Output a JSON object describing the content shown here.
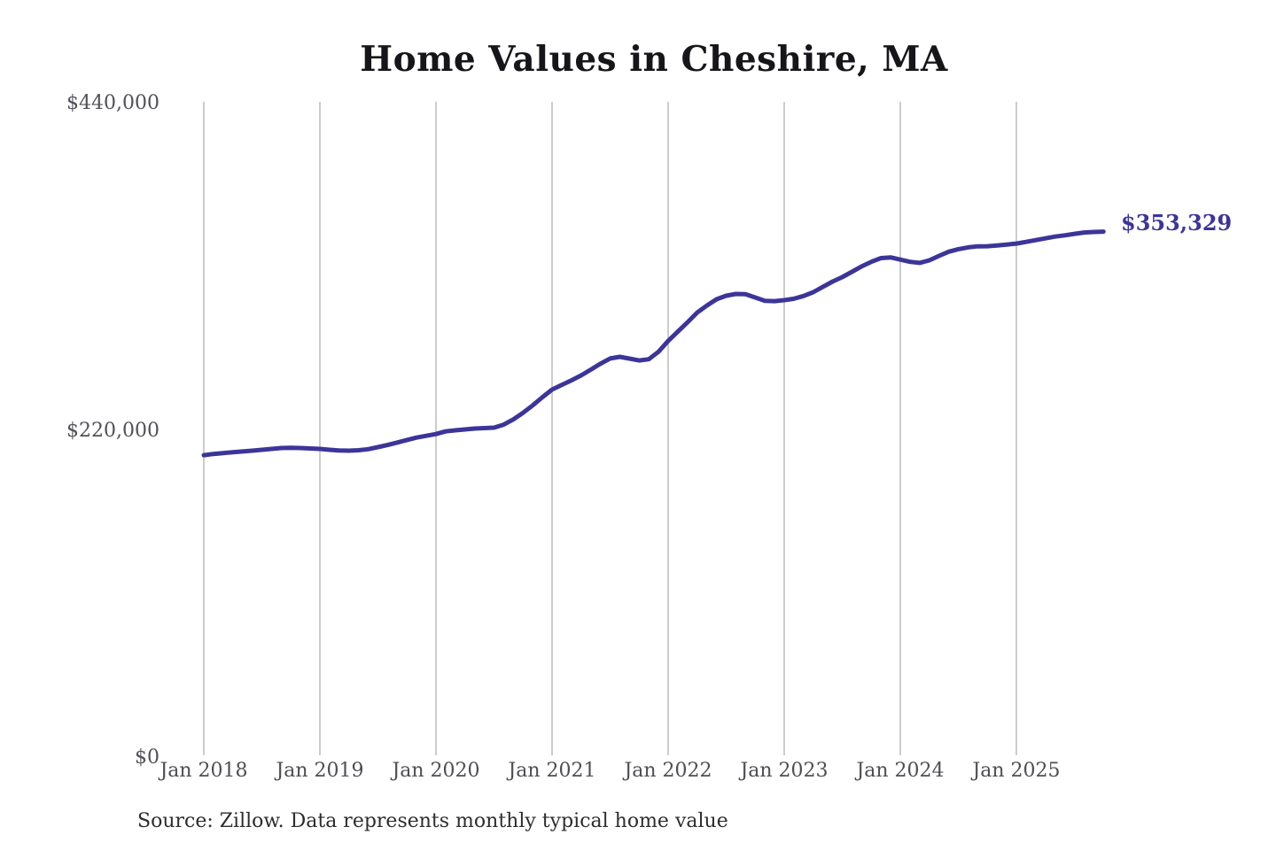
{
  "chart": {
    "title": "Home Values in Cheshire, MA",
    "latest_value_label": "$353,329",
    "source_note": "Source: Zillow. Data represents monthly typical home value",
    "colors": {
      "line": "#3c3599",
      "latest_label_text": "#3c3599",
      "grid": "#bfbfbf",
      "y_tick_text": "#505157",
      "x_tick_text": "#4e4f54",
      "title_text": "#16161a",
      "source_text": "#2d2d2d",
      "background": "#ffffff"
    }
  },
  "chart_data": {
    "type": "line",
    "title": "Home Values in Cheshire, MA",
    "x_tick_labels": [
      "Jan 2018",
      "Jan 2019",
      "Jan 2020",
      "Jan 2021",
      "Jan 2022",
      "Jan 2023",
      "Jan 2024",
      "Jan 2025"
    ],
    "y_tick_labels": [
      "$0",
      "$220,000",
      "$440,000"
    ],
    "y_tick_values": [
      0,
      220000,
      440000
    ],
    "ylim": [
      0,
      440000
    ],
    "grid": "vertical-only",
    "legend": "none",
    "x_unit": "month",
    "latest_value": 353329,
    "series": [
      {
        "name": "Monthly typical home value",
        "start_label": "Jan 2018",
        "values": [
          203000,
          203800,
          204400,
          205000,
          205500,
          206000,
          206600,
          207200,
          207800,
          208000,
          207800,
          207500,
          207200,
          206600,
          206100,
          206000,
          206300,
          207000,
          208400,
          209800,
          211500,
          213200,
          214800,
          216000,
          217200,
          219000,
          219700,
          220300,
          220900,
          221200,
          221500,
          223500,
          227000,
          231500,
          236500,
          242000,
          247100,
          250200,
          253300,
          256600,
          260500,
          264500,
          268000,
          269100,
          267900,
          266700,
          267500,
          272500,
          279800,
          286000,
          292300,
          298900,
          303600,
          307800,
          310200,
          311400,
          311200,
          309000,
          306800,
          306600,
          307200,
          308200,
          310000,
          312600,
          316200,
          319700,
          322700,
          326300,
          329900,
          333000,
          335500,
          336000,
          334500,
          333000,
          332300,
          334000,
          337000,
          339800,
          341500,
          342700,
          343400,
          343500,
          344000,
          344600,
          345300,
          346400,
          347600,
          348800,
          350000,
          350800,
          351800,
          352700,
          353100,
          353329
        ]
      }
    ]
  }
}
